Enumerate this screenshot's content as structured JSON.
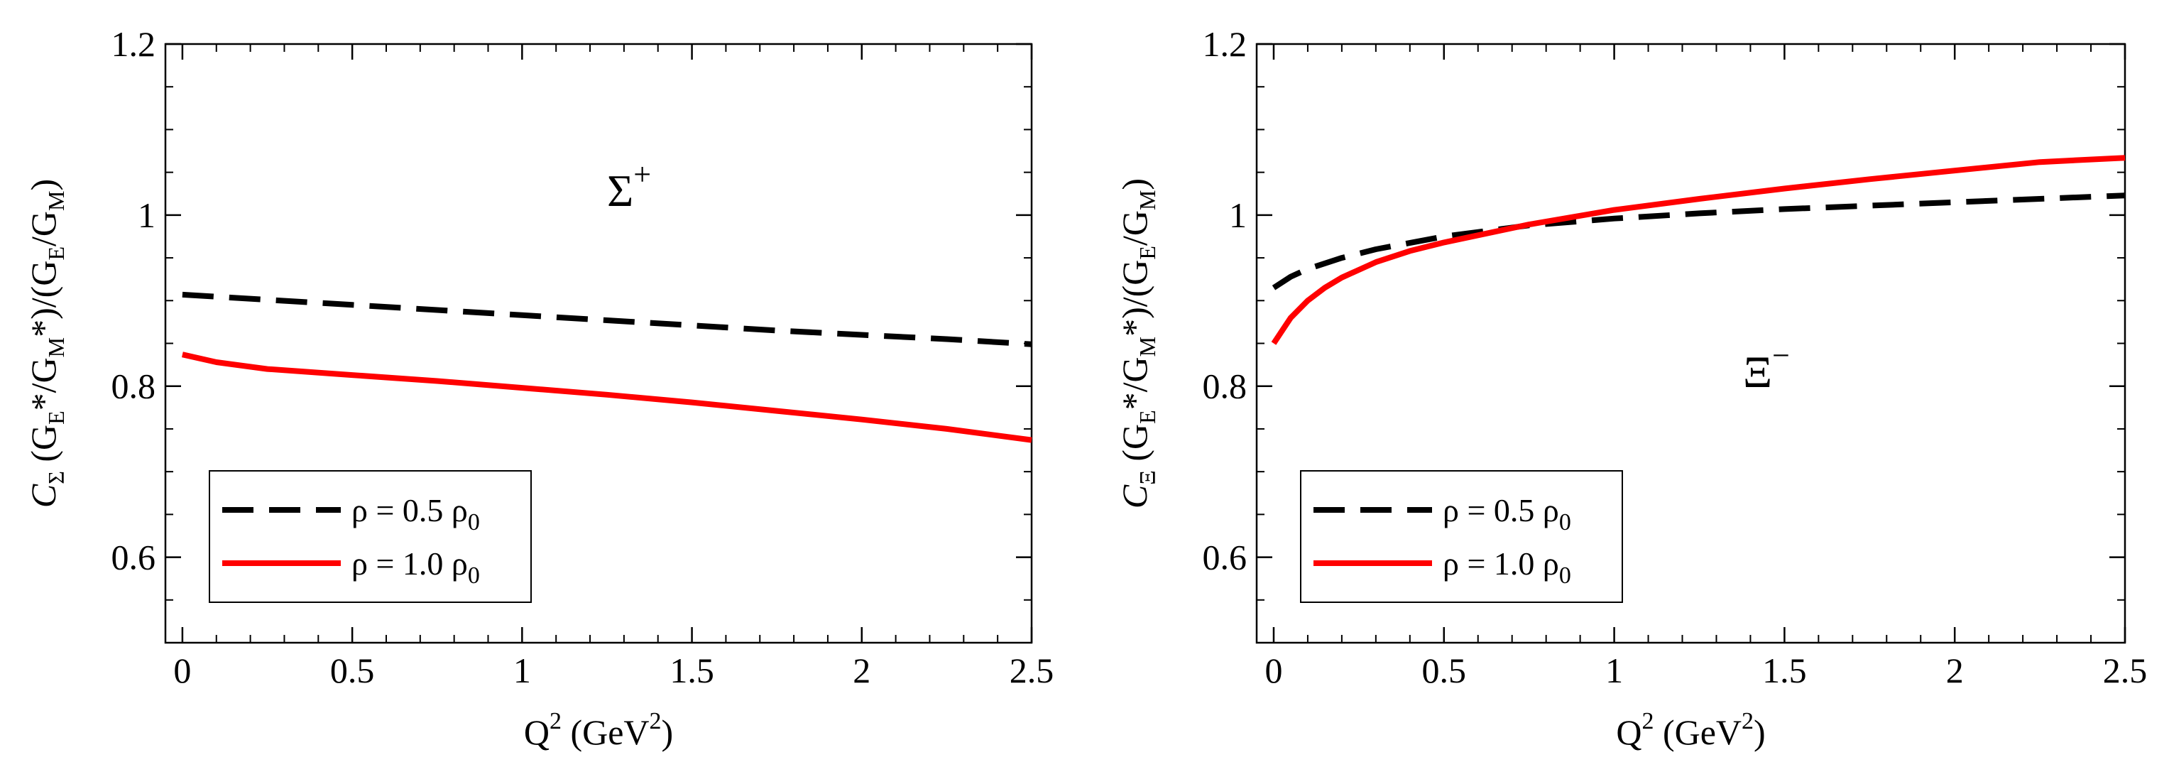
{
  "chart_data": [
    {
      "type": "line",
      "panel_label": {
        "main": "Σ",
        "sup": "+"
      },
      "xlabel": {
        "main": "Q",
        "sup": "2",
        "rest1": " (GeV",
        "sup2": "2",
        "rest2": ")"
      },
      "ylabel": {
        "c": "C",
        "c_sub": "Σ",
        "p1": " (G",
        "s1": "E",
        "p2": "*/G",
        "s2": "M",
        "p3": "*)/(G",
        "s3": "E",
        "p4": "/G",
        "s4": "M",
        "p5": ")"
      },
      "xlim": [
        -0.05,
        2.5
      ],
      "ylim": [
        0.5,
        1.2
      ],
      "xticks": [
        0,
        0.5,
        1,
        1.5,
        2,
        2.5
      ],
      "xtick_labels": [
        "0",
        "0.5",
        "1",
        "1.5",
        "2",
        "2.5"
      ],
      "yticks": [
        0.6,
        0.8,
        1.0,
        1.2
      ],
      "ytick_labels": [
        "0.6",
        "0.8",
        "1",
        "1.2"
      ],
      "legend_position": "bottom-left",
      "series": [
        {
          "name": "ρ = 0.5 ρ0",
          "legend_main": "ρ = 0.5 ρ",
          "legend_sub": "0",
          "color": "#000000",
          "style": "dashed",
          "x": [
            0,
            0.25,
            0.5,
            0.75,
            1.0,
            1.25,
            1.5,
            1.75,
            2.0,
            2.25,
            2.5
          ],
          "y": [
            0.907,
            0.901,
            0.895,
            0.889,
            0.883,
            0.877,
            0.871,
            0.865,
            0.86,
            0.855,
            0.849
          ]
        },
        {
          "name": "ρ = 1.0 ρ0",
          "legend_main": "ρ = 1.0 ρ",
          "legend_sub": "0",
          "color": "#ff0000",
          "style": "solid",
          "x": [
            0,
            0.1,
            0.25,
            0.5,
            0.75,
            1.0,
            1.25,
            1.5,
            1.75,
            2.0,
            2.25,
            2.5
          ],
          "y": [
            0.837,
            0.828,
            0.82,
            0.813,
            0.806,
            0.798,
            0.79,
            0.781,
            0.771,
            0.761,
            0.75,
            0.737
          ]
        }
      ]
    },
    {
      "type": "line",
      "panel_label": {
        "main": "Ξ",
        "sup": "−"
      },
      "xlabel": {
        "main": "Q",
        "sup": "2",
        "rest1": " (GeV",
        "sup2": "2",
        "rest2": ")"
      },
      "ylabel": {
        "c": "C",
        "c_sub": "Ξ",
        "p1": " (G",
        "s1": "E",
        "p2": "*/G",
        "s2": "M",
        "p3": "*)/(G",
        "s3": "E",
        "p4": "/G",
        "s4": "M",
        "p5": ")"
      },
      "xlim": [
        -0.05,
        2.5
      ],
      "ylim": [
        0.5,
        1.2
      ],
      "xticks": [
        0,
        0.5,
        1,
        1.5,
        2,
        2.5
      ],
      "xtick_labels": [
        "0",
        "0.5",
        "1",
        "1.5",
        "2",
        "2.5"
      ],
      "yticks": [
        0.6,
        0.8,
        1.0,
        1.2
      ],
      "ytick_labels": [
        "0.6",
        "0.8",
        "1",
        "1.2"
      ],
      "legend_position": "bottom-left",
      "series": [
        {
          "name": "ρ = 0.5 ρ0",
          "legend_main": "ρ = 0.5 ρ",
          "legend_sub": "0",
          "color": "#000000",
          "style": "dashed",
          "x": [
            0,
            0.05,
            0.1,
            0.2,
            0.3,
            0.5,
            0.75,
            1.0,
            1.25,
            1.5,
            1.75,
            2.0,
            2.25,
            2.5
          ],
          "y": [
            0.915,
            0.928,
            0.937,
            0.95,
            0.96,
            0.975,
            0.988,
            0.996,
            1.002,
            1.007,
            1.011,
            1.015,
            1.019,
            1.023
          ]
        },
        {
          "name": "ρ = 1.0 ρ0",
          "legend_main": "ρ = 1.0 ρ",
          "legend_sub": "0",
          "color": "#ff0000",
          "style": "solid",
          "x": [
            0,
            0.02,
            0.05,
            0.1,
            0.15,
            0.2,
            0.3,
            0.4,
            0.5,
            0.75,
            1.0,
            1.25,
            1.5,
            1.75,
            2.0,
            2.25,
            2.5
          ],
          "y": [
            0.85,
            0.862,
            0.88,
            0.9,
            0.915,
            0.927,
            0.945,
            0.958,
            0.968,
            0.989,
            1.006,
            1.019,
            1.031,
            1.042,
            1.052,
            1.062,
            1.067
          ]
        }
      ]
    }
  ]
}
